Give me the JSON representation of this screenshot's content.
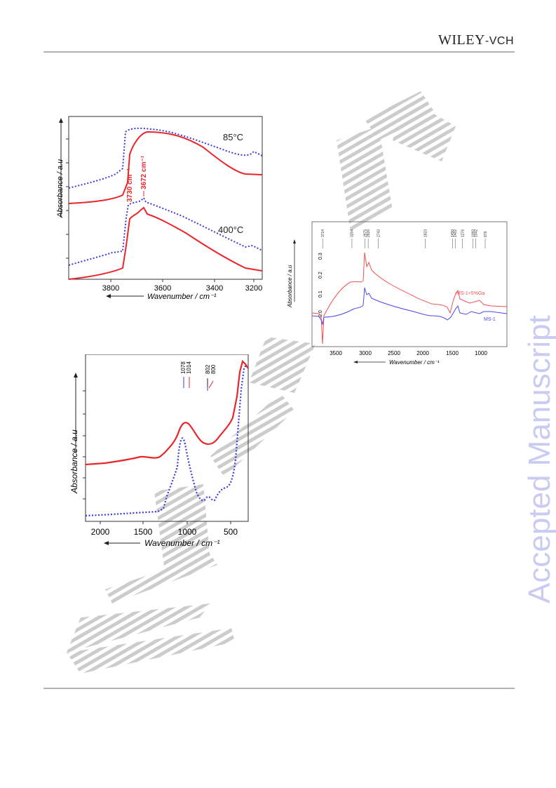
{
  "header": {
    "logo_main": "WILEY",
    "logo_suffix": "-VCH",
    "side_stamp": "Accepted Manuscript",
    "watermark": "WILEY-VCH"
  },
  "figures": [
    {
      "id": "fig-a",
      "ylabel": "Absorbance / a.u",
      "xlabel": "Wavenumber / cm⁻¹",
      "xticks": [
        "3800",
        "3600",
        "3400",
        "3200"
      ],
      "annotations": [
        "85°C",
        "400°C",
        "3730 cm⁻¹",
        "3672 cm⁻¹"
      ],
      "colors": {
        "solid": "#e8262b",
        "dotted": "#3b3bd8"
      }
    },
    {
      "id": "fig-b",
      "ylabel": "Absorbance / a.u",
      "xlabel": "Wavenumber / cm⁻¹",
      "xticks": [
        "3500",
        "3000",
        "2500",
        "2000",
        "1500",
        "1000"
      ],
      "yticks": [
        "0.0",
        "0.1",
        "0.2",
        "0.3"
      ],
      "peaks": [
        "3714",
        "3204",
        "2975",
        "2920",
        "2743",
        "1923",
        "1450",
        "1402",
        "1276",
        "1093",
        "1042",
        "879"
      ],
      "series": [
        "MS-1+5%Ga",
        "MS-1"
      ],
      "colors": {
        "ga": "#f05252",
        "ms1": "#4a4af0"
      }
    },
    {
      "id": "fig-c",
      "ylabel": "Absorbance / a.u",
      "xlabel": "Wavenumber / cm⁻¹",
      "xticks": [
        "2000",
        "1500",
        "1000",
        "500"
      ],
      "peaks": [
        "1078",
        "1014",
        "802",
        "800"
      ],
      "colors": {
        "solid": "#e8262b",
        "dotted": "#3b3bd8"
      }
    }
  ]
}
